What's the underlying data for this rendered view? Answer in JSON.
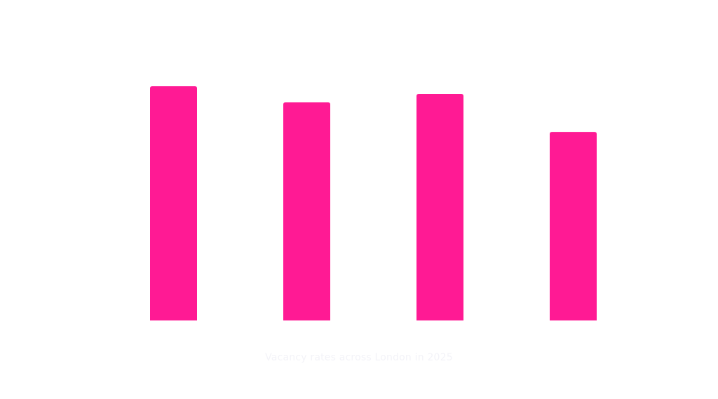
{
  "chart_data": {
    "type": "bar",
    "title": "",
    "caption": "Vacancy rates across London in 2025",
    "categories": [
      "",
      "",
      "",
      ""
    ],
    "values": [
      100,
      93.1,
      96.7,
      80.5
    ],
    "value_scale_note": "no axis shown; values relative to tallest bar",
    "ylim": [
      0,
      100
    ],
    "xlabel": "",
    "ylabel": "",
    "grid": false,
    "legend": "none",
    "colors": {
      "bar": "#ff1a94",
      "caption": "#f3f3f8",
      "background": "#ffffff"
    }
  }
}
